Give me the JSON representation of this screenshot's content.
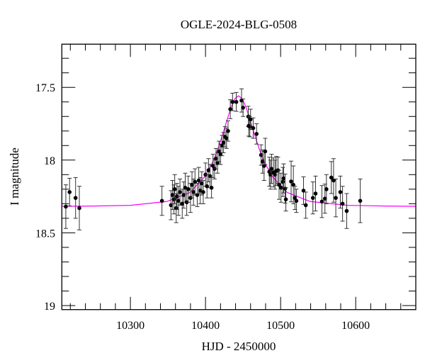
{
  "chart_data": {
    "type": "scatter",
    "title": "OGLE-2024-BLG-0508",
    "xlabel": "HJD - 2450000",
    "ylabel": "I magnitude",
    "xlim": [
      10208.7,
      10680
    ],
    "ylim": [
      19.028,
      17.203
    ],
    "y_inverted": true,
    "x_major_ticks": [
      10300,
      10400,
      10500,
      10600
    ],
    "x_tick_labels": [
      "10300",
      "10400",
      "10500",
      "10600"
    ],
    "x_minor_step": 20,
    "y_major_ticks": [
      17.5,
      18,
      18.5,
      19
    ],
    "y_tick_labels": [
      "17.5",
      "18",
      "18.5",
      "19"
    ],
    "y_minor_step": 0.1,
    "grid": false,
    "colors": {
      "points": "#000000",
      "errorbars": "#333333",
      "model": "#ff00ff"
    },
    "series": [
      {
        "name": "OGLE photometry",
        "columns": [
          "hjd",
          "mag",
          "err"
        ],
        "points": [
          [
            10214,
            18.32,
            0.15
          ],
          [
            10219,
            18.22,
            0.095
          ],
          [
            10227,
            18.26,
            0.14
          ],
          [
            10232,
            18.33,
            0.15
          ],
          [
            10342,
            18.28,
            0.1
          ],
          [
            10354,
            18.31,
            0.1
          ],
          [
            10356,
            18.24,
            0.1
          ],
          [
            10358,
            18.27,
            0.1
          ],
          [
            10359,
            18.2,
            0.1
          ],
          [
            10361,
            18.33,
            0.1
          ],
          [
            10362,
            18.25,
            0.09
          ],
          [
            10364,
            18.28,
            0.1
          ],
          [
            10366,
            18.22,
            0.09
          ],
          [
            10369,
            18.3,
            0.1
          ],
          [
            10371,
            18.24,
            0.09
          ],
          [
            10373,
            18.19,
            0.1
          ],
          [
            10375,
            18.29,
            0.09
          ],
          [
            10377,
            18.2,
            0.09
          ],
          [
            10380,
            18.26,
            0.1
          ],
          [
            10382,
            18.17,
            0.09
          ],
          [
            10384,
            18.22,
            0.09
          ],
          [
            10386,
            18.15,
            0.09
          ],
          [
            10389,
            18.24,
            0.08
          ],
          [
            10391,
            18.14,
            0.09
          ],
          [
            10393,
            18.21,
            0.09
          ],
          [
            10395,
            18.16,
            0.08
          ],
          [
            10397,
            18.22,
            0.08
          ],
          [
            10400,
            18.1,
            0.08
          ],
          [
            10402,
            18.18,
            0.08
          ],
          [
            10404,
            18.07,
            0.08
          ],
          [
            10406,
            18.11,
            0.08
          ],
          [
            10408,
            18.19,
            0.07
          ],
          [
            10410,
            18.04,
            0.08
          ],
          [
            10412,
            18.06,
            0.07
          ],
          [
            10414,
            17.99,
            0.07
          ],
          [
            10416,
            18.02,
            0.07
          ],
          [
            10418,
            17.94,
            0.07
          ],
          [
            10420,
            17.96,
            0.07
          ],
          [
            10422,
            17.9,
            0.07
          ],
          [
            10424,
            17.88,
            0.07
          ],
          [
            10426,
            17.84,
            0.07
          ],
          [
            10428,
            17.85,
            0.07
          ],
          [
            10430,
            17.8,
            0.07
          ],
          [
            10433,
            17.65,
            0.065
          ],
          [
            10436,
            17.6,
            0.06
          ],
          [
            10441,
            17.6,
            0.065
          ],
          [
            10448,
            17.59,
            0.08
          ],
          [
            10450,
            17.64,
            0.06
          ],
          [
            10457,
            17.7,
            0.07
          ],
          [
            10457.5,
            17.765,
            0.07
          ],
          [
            10459,
            17.77,
            0.07
          ],
          [
            10460,
            17.72,
            0.07
          ],
          [
            10463.5,
            17.78,
            0.07
          ],
          [
            10468,
            17.82,
            0.07
          ],
          [
            10474,
            17.965,
            0.07
          ],
          [
            10476,
            18.01,
            0.08
          ],
          [
            10478,
            18.04,
            0.1
          ],
          [
            10479.5,
            17.94,
            0.09
          ],
          [
            10485,
            18.08,
            0.1
          ],
          [
            10486.5,
            18.1,
            0.1
          ],
          [
            10488,
            18.06,
            0.1
          ],
          [
            10490.5,
            18.085,
            0.1
          ],
          [
            10492.5,
            18.1,
            0.1
          ],
          [
            10494,
            18.075,
            0.1
          ],
          [
            10496.5,
            18.07,
            0.09
          ],
          [
            10498,
            18.17,
            0.1
          ],
          [
            10500.5,
            18.19,
            0.1
          ],
          [
            10503,
            18.15,
            0.1
          ],
          [
            10504,
            18.126,
            0.1
          ],
          [
            10506,
            18.196,
            0.1
          ],
          [
            10507,
            18.27,
            0.08
          ],
          [
            10514,
            18.147,
            0.14
          ],
          [
            10517,
            18.17,
            0.13
          ],
          [
            10519,
            18.26,
            0.08
          ],
          [
            10521,
            18.28,
            0.08
          ],
          [
            10530.5,
            18.21,
            0.095
          ],
          [
            10533.5,
            18.31,
            0.09
          ],
          [
            10543,
            18.26,
            0.11
          ],
          [
            10546.5,
            18.23,
            0.12
          ],
          [
            10555,
            18.285,
            0.11
          ],
          [
            10559,
            18.265,
            0.1
          ],
          [
            10561,
            18.2,
            0.1
          ],
          [
            10567.5,
            18.12,
            0.11
          ],
          [
            10570.5,
            18.14,
            0.15
          ],
          [
            10573.5,
            18.26,
            0.13
          ],
          [
            10579.5,
            18.22,
            0.11
          ],
          [
            10582.5,
            18.3,
            0.12
          ],
          [
            10588,
            18.35,
            0.12
          ],
          [
            10606,
            18.28,
            0.15
          ]
        ]
      },
      {
        "name": "model",
        "type": "line",
        "x": [
          10208.7,
          10250,
          10300,
          10349,
          10379,
          10399,
          10409,
          10414,
          10419,
          10424,
          10429,
          10434,
          10439,
          10444,
          10449,
          10454,
          10459,
          10464,
          10469,
          10474,
          10479,
          10489,
          10509,
          10539,
          10589,
          10640,
          10680
        ],
        "y": [
          18.318,
          18.316,
          18.311,
          18.284,
          18.223,
          18.114,
          18.02,
          17.959,
          17.885,
          17.803,
          17.718,
          17.638,
          17.579,
          17.558,
          17.579,
          17.638,
          17.718,
          17.803,
          17.885,
          17.959,
          18.02,
          18.114,
          18.223,
          18.284,
          18.311,
          18.316,
          18.318
        ]
      }
    ]
  }
}
